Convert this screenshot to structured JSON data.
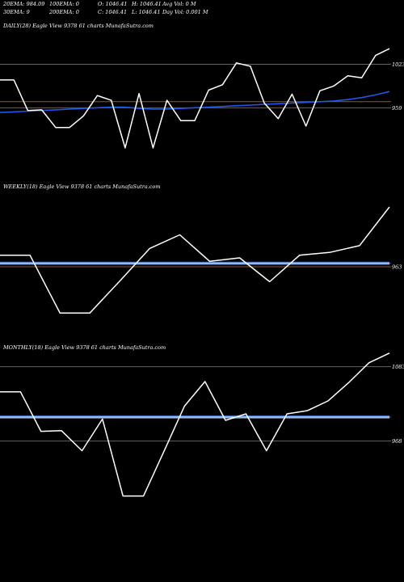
{
  "header": {
    "row1": [
      "20EMA: 984.09",
      "100EMA: 0",
      "O: 1046.41",
      "H: 1046.41",
      "Avg Vol: 0  M"
    ],
    "row2": [
      "30EMA: 9",
      "200EMA: 0",
      "C: 1046.41",
      "L: 1046.41",
      "Day Vol: 0.001  M"
    ]
  },
  "colors": {
    "background": "#000000",
    "price": "#ffffff",
    "ema": "#2255ee",
    "band": "#4a78d8",
    "hline": "#8b5a2b"
  },
  "chart_data": [
    {
      "type": "line",
      "panel_label": "DAILY(28) Eagle   View  9378                   61 charts MunafaSutra.com",
      "price_levels": [
        {
          "label": "1023",
          "value": 1023
        },
        {
          "label": "",
          "value": 968
        },
        {
          "label": "959",
          "value": 959
        }
      ],
      "ylim": [
        850,
        1070
      ],
      "series": [
        {
          "values": [
            1000,
            1000,
            955,
            956,
            930,
            930,
            947,
            977,
            970,
            900,
            980,
            900,
            970,
            940,
            940,
            985,
            993,
            1025,
            1020,
            966,
            943,
            979,
            932,
            984,
            991,
            1006,
            1003,
            1036,
            1046
          ]
        },
        {
          "values": [
            952,
            953,
            954,
            955,
            956,
            957,
            958,
            959,
            960,
            960,
            958,
            957,
            957,
            958,
            959,
            960,
            961,
            962,
            963,
            964,
            965,
            966,
            967,
            968,
            969,
            971,
            974,
            978,
            983
          ]
        }
      ]
    },
    {
      "type": "line",
      "panel_label": "WEEKLY(18) Eagle   View  9378                   61 charts MunafaSutra.com",
      "price_levels": [
        {
          "label": "",
          "value": 968
        },
        {
          "label": "963",
          "value": 963
        }
      ],
      "ylim": [
        850,
        1070
      ],
      "series": [
        {
          "values": [
            980,
            980,
            895,
            895,
            942,
            990,
            1010,
            971,
            976,
            941,
            980,
            984,
            994,
            1051
          ]
        },
        {
          "values": [
            968,
            968,
            968,
            968,
            968,
            968,
            968,
            968,
            968,
            968,
            968,
            968,
            968,
            968
          ]
        }
      ]
    },
    {
      "type": "line",
      "panel_label": "MONTHLY(18) Eagle   View  9378                   61 charts MunafaSutra.com",
      "price_levels": [
        {
          "label": "1083",
          "value": 1083
        },
        {
          "label": "",
          "value": 1005
        },
        {
          "label": "968",
          "value": 968
        }
      ],
      "ylim": [
        850,
        1100
      ],
      "series": [
        {
          "values": [
            1044,
            1044,
            983,
            984,
            953,
            1002,
            883,
            883,
            952,
            1022,
            1060,
            1000,
            1010,
            953,
            1010,
            1015,
            1030,
            1058,
            1089,
            1104
          ]
        },
        {
          "values": [
            1005,
            1005,
            1005,
            1005,
            1005,
            1005,
            1005,
            1005,
            1005,
            1005,
            1005,
            1005,
            1005,
            1005,
            1005,
            1005,
            1005,
            1005,
            1005,
            1005
          ]
        }
      ]
    }
  ]
}
